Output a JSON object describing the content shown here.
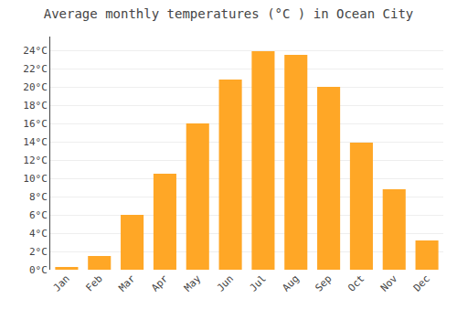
{
  "chart_data": {
    "type": "bar",
    "title": "Average monthly temperatures (°C ) in Ocean City",
    "categories": [
      "Jan",
      "Feb",
      "Mar",
      "Apr",
      "May",
      "Jun",
      "Jul",
      "Aug",
      "Sep",
      "Oct",
      "Nov",
      "Dec"
    ],
    "values": [
      0.3,
      1.5,
      6.0,
      10.5,
      16.0,
      20.8,
      23.9,
      23.5,
      20.0,
      13.9,
      8.8,
      3.2
    ],
    "color": "#FFA726",
    "ylim": [
      0,
      25.5
    ],
    "yticks": [
      {
        "value": 0,
        "label": "0°C"
      },
      {
        "value": 2,
        "label": "2°C"
      },
      {
        "value": 4,
        "label": "4°C"
      },
      {
        "value": 6,
        "label": "6°C"
      },
      {
        "value": 8,
        "label": "8°C"
      },
      {
        "value": 10,
        "label": "10°C"
      },
      {
        "value": 12,
        "label": "12°C"
      },
      {
        "value": 14,
        "label": "14°C"
      },
      {
        "value": 16,
        "label": "16°C"
      },
      {
        "value": 18,
        "label": "18°C"
      },
      {
        "value": 20,
        "label": "20°C"
      },
      {
        "value": 22,
        "label": "22°C"
      },
      {
        "value": 24,
        "label": "24°C"
      }
    ],
    "grid": true
  }
}
